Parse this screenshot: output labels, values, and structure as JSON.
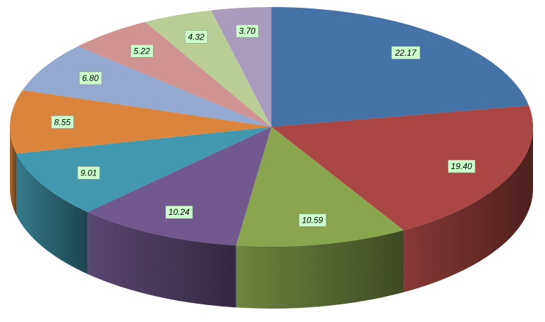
{
  "chart_data": {
    "type": "pie",
    "values": [
      22.17,
      19.4,
      10.59,
      10.24,
      9.01,
      8.55,
      6.8,
      5.22,
      4.32,
      3.7
    ],
    "value_labels": [
      "22.17",
      "19.40",
      "10.59",
      "10.24",
      "9.01",
      "8.55",
      "6.80",
      "5.22",
      "4.32",
      "3.70"
    ],
    "colors": [
      "#4572a7",
      "#aa4643",
      "#89a54e",
      "#71588f",
      "#4198af",
      "#db843d",
      "#93a9cf",
      "#d19392",
      "#b9cd96",
      "#a99bbd"
    ]
  }
}
